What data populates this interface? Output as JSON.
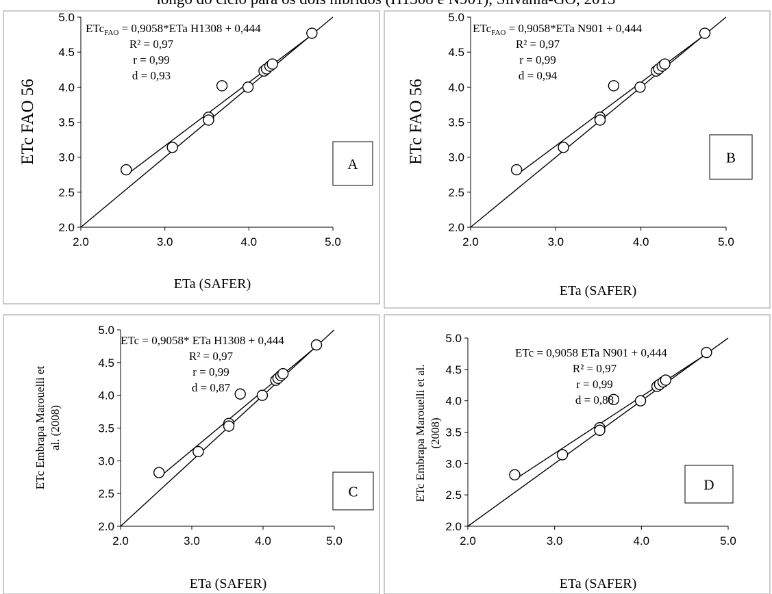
{
  "caption": "longo do ciclo para os dois híbridos (H1308 e N901), Silvânia-GO, 2013",
  "chart_data": [
    {
      "type": "scatter",
      "panel_label": "A",
      "xlabel": "ETa (SAFER)",
      "ylabel_lines": [
        "ETc FAO 56"
      ],
      "xlim": [
        2.0,
        5.0
      ],
      "ylim": [
        2.0,
        5.0
      ],
      "xticks": [
        "2.0",
        "3.0",
        "4.0",
        "5.0"
      ],
      "yticks": [
        "2.0",
        "2.5",
        "3.0",
        "3.5",
        "4.0",
        "4.5",
        "5.0"
      ],
      "equation": {
        "prefix": "ETc",
        "sub": "FAO",
        "suffix": " = 0,9058*ETa H1308 + 0,444"
      },
      "stats": [
        "R² = 0,97",
        "r = 0,99",
        "d = 0,93"
      ],
      "regression": {
        "slope": 0.9058,
        "intercept": 0.444
      },
      "identity_line": true,
      "points": [
        [
          2.54,
          2.82
        ],
        [
          3.09,
          3.14
        ],
        [
          3.52,
          3.57
        ],
        [
          3.52,
          3.53
        ],
        [
          3.68,
          4.02
        ],
        [
          3.99,
          4.0
        ],
        [
          4.18,
          4.23
        ],
        [
          4.21,
          4.26
        ],
        [
          4.25,
          4.3
        ],
        [
          4.28,
          4.33
        ],
        [
          4.75,
          4.77
        ]
      ]
    },
    {
      "type": "scatter",
      "panel_label": "B",
      "xlabel": "ETa (SAFER)",
      "ylabel_lines": [
        "ETc FAO 56"
      ],
      "xlim": [
        2.0,
        5.0
      ],
      "ylim": [
        2.0,
        5.0
      ],
      "xticks": [
        "2.0",
        "3.0",
        "4.0",
        "5.0"
      ],
      "yticks": [
        "2.0",
        "2.5",
        "3.0",
        "3.5",
        "4.0",
        "4.5",
        "5.0"
      ],
      "equation": {
        "prefix": "ETc",
        "sub": "FAO",
        "suffix": " = 0,9058*ETa N901 + 0,444"
      },
      "stats": [
        "R² = 0,97",
        "r = 0,99",
        "d = 0,94"
      ],
      "regression": {
        "slope": 0.9058,
        "intercept": 0.444
      },
      "identity_line": true,
      "points": [
        [
          2.54,
          2.82
        ],
        [
          3.09,
          3.14
        ],
        [
          3.52,
          3.57
        ],
        [
          3.52,
          3.53
        ],
        [
          3.68,
          4.02
        ],
        [
          3.99,
          4.0
        ],
        [
          4.18,
          4.23
        ],
        [
          4.21,
          4.26
        ],
        [
          4.25,
          4.3
        ],
        [
          4.28,
          4.33
        ],
        [
          4.75,
          4.77
        ]
      ]
    },
    {
      "type": "scatter",
      "panel_label": "C",
      "xlabel": "ETa (SAFER)",
      "ylabel_lines": [
        "ETc Embrapa Marouelli et",
        "al. (2008)"
      ],
      "xlim": [
        2.0,
        5.0
      ],
      "ylim": [
        2.0,
        5.0
      ],
      "xticks": [
        "2.0",
        "3.0",
        "4.0",
        "5.0"
      ],
      "yticks": [
        "2.0",
        "2.5",
        "3.0",
        "3.5",
        "4.0",
        "4.5",
        "5.0"
      ],
      "equation": {
        "prefix": "ETc = 0,9058* ETa H1308 + 0,444",
        "sub": "",
        "suffix": ""
      },
      "stats": [
        "R² = 0,97",
        "r = 0,99",
        "d = 0,87"
      ],
      "regression": {
        "slope": 0.9058,
        "intercept": 0.444
      },
      "identity_line": true,
      "points": [
        [
          2.54,
          2.82
        ],
        [
          3.09,
          3.14
        ],
        [
          3.52,
          3.57
        ],
        [
          3.52,
          3.53
        ],
        [
          3.68,
          4.02
        ],
        [
          3.99,
          4.0
        ],
        [
          4.18,
          4.23
        ],
        [
          4.21,
          4.26
        ],
        [
          4.25,
          4.3
        ],
        [
          4.28,
          4.33
        ],
        [
          4.75,
          4.77
        ]
      ]
    },
    {
      "type": "scatter",
      "panel_label": "D",
      "xlabel": "ETa (SAFER)",
      "ylabel_lines": [
        "ETc Embrapa Marouelli et al.",
        "(2008)"
      ],
      "xlim": [
        2.0,
        5.0
      ],
      "ylim": [
        2.0,
        5.0
      ],
      "xticks": [
        "2.0",
        "3.0",
        "4.0",
        "5.0"
      ],
      "yticks": [
        "2.0",
        "2.5",
        "3.0",
        "3.5",
        "4.0",
        "4.5",
        "5.0"
      ],
      "equation": {
        "prefix": "ETc = 0,9058 ETa N901 + 0,444",
        "sub": "",
        "suffix": ""
      },
      "stats": [
        "R² = 0,97",
        "r = 0,99",
        "d = 0,88"
      ],
      "regression": {
        "slope": 0.9058,
        "intercept": 0.444
      },
      "identity_line": true,
      "points": [
        [
          2.54,
          2.82
        ],
        [
          3.09,
          3.14
        ],
        [
          3.52,
          3.57
        ],
        [
          3.52,
          3.53
        ],
        [
          3.68,
          4.02
        ],
        [
          3.99,
          4.0
        ],
        [
          4.18,
          4.23
        ],
        [
          4.21,
          4.26
        ],
        [
          4.25,
          4.3
        ],
        [
          4.28,
          4.33
        ],
        [
          4.75,
          4.77
        ]
      ]
    }
  ]
}
